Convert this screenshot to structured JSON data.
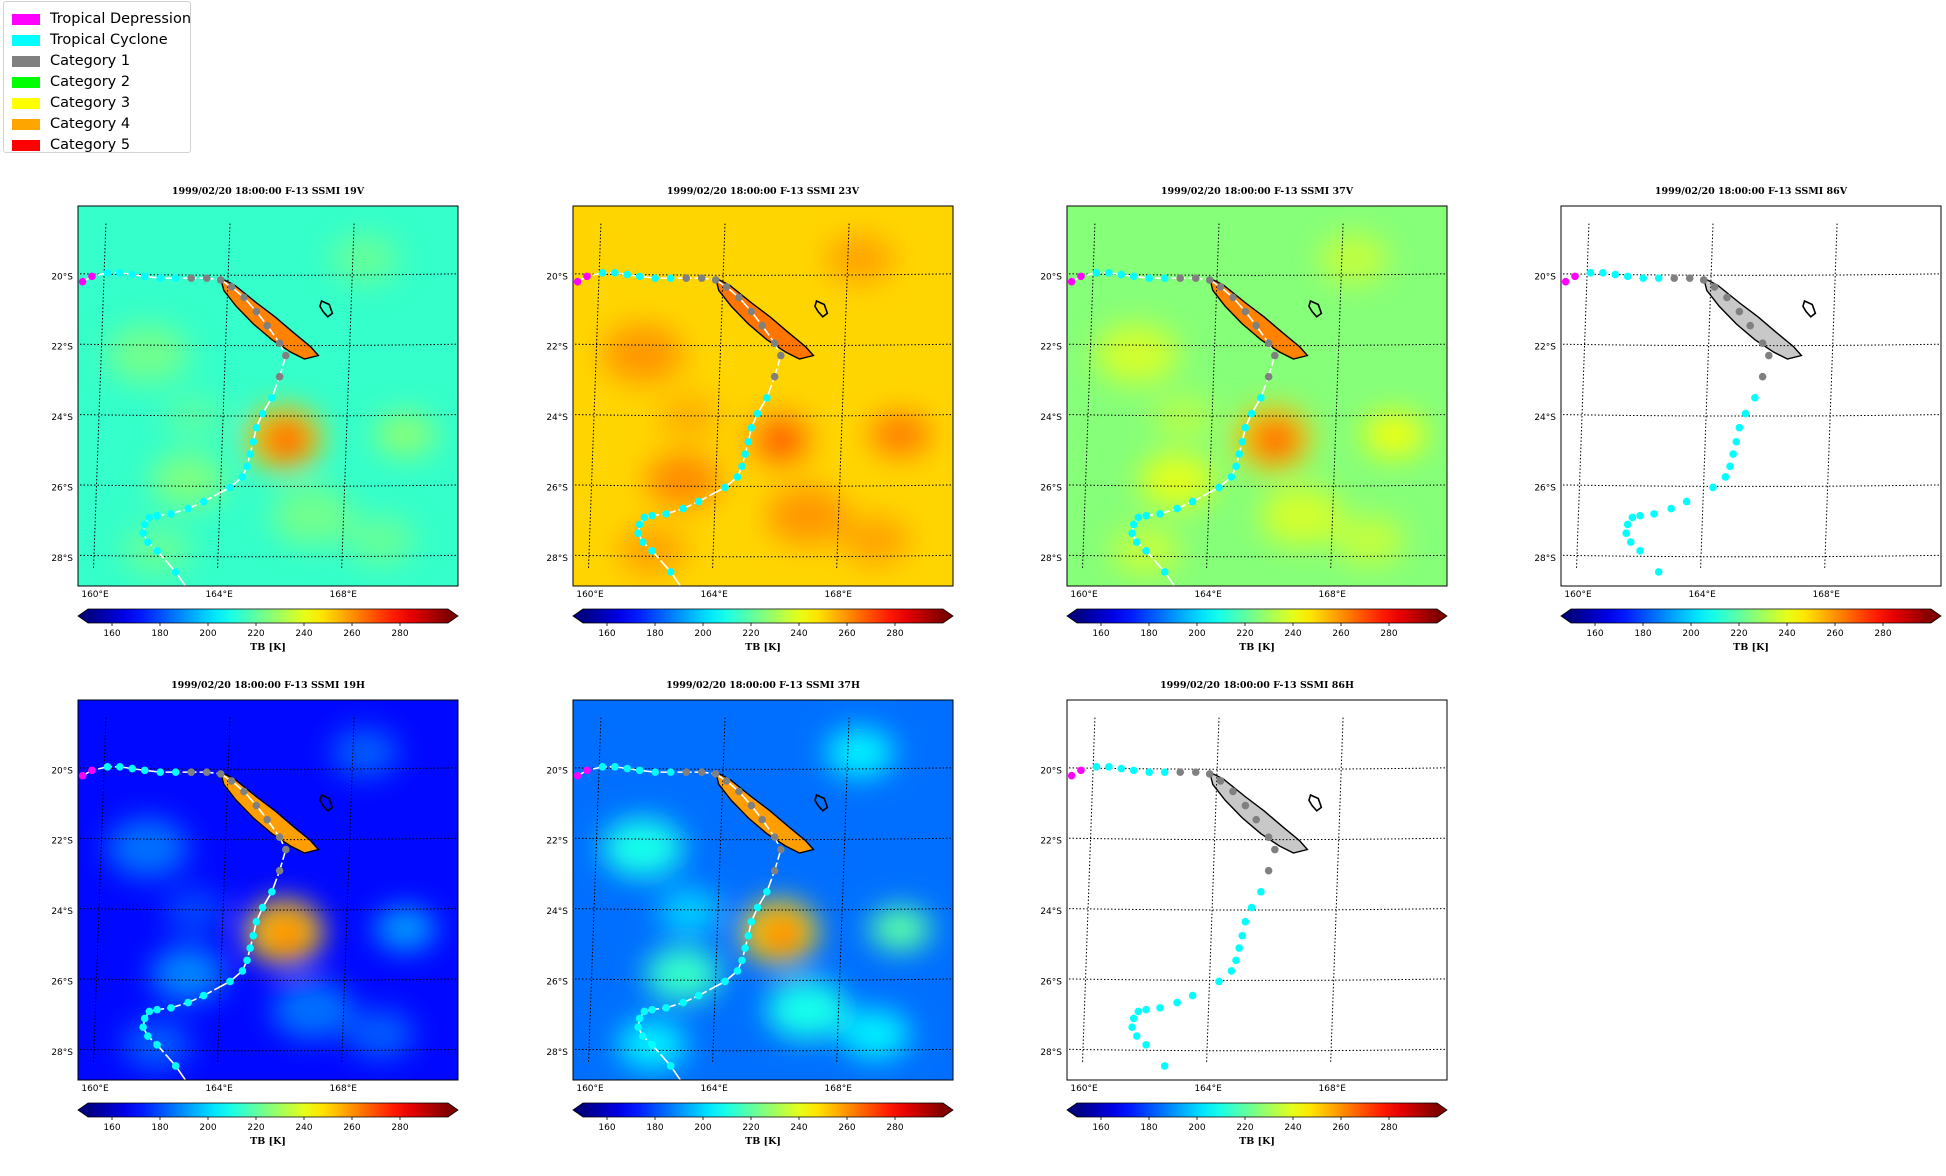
{
  "legend": {
    "items": [
      {
        "label": "Tropical Depression",
        "color": "#ff00ff"
      },
      {
        "label": "Tropical Cyclone",
        "color": "#00ffff"
      },
      {
        "label": "Category 1",
        "color": "#808080"
      },
      {
        "label": "Category 2",
        "color": "#00ff00"
      },
      {
        "label": "Category 3",
        "color": "#ffff00"
      },
      {
        "label": "Category 4",
        "color": "#ffa500"
      },
      {
        "label": "Category 5",
        "color": "#ff0000"
      }
    ]
  },
  "lon_labels": [
    "160°E",
    "164°E",
    "168°E"
  ],
  "lat_labels": [
    "20°S",
    "22°S",
    "24°S",
    "26°S",
    "28°S"
  ],
  "colorbar": {
    "label": "TB [K]",
    "ticks": [
      "160",
      "180",
      "200",
      "220",
      "240",
      "260",
      "280"
    ],
    "vmin": 150,
    "vmax": 300,
    "colormap": "jet"
  },
  "track": {
    "points": [
      {
        "lat": -20.15,
        "lon": 159.4,
        "cat": "Tropical Depression"
      },
      {
        "lat": -20.0,
        "lon": 159.7,
        "cat": "Tropical Depression"
      },
      {
        "lat": -19.9,
        "lon": 160.2,
        "cat": "Tropical Cyclone"
      },
      {
        "lat": -19.9,
        "lon": 160.6,
        "cat": "Tropical Cyclone"
      },
      {
        "lat": -19.95,
        "lon": 161.0,
        "cat": "Tropical Cyclone"
      },
      {
        "lat": -20.0,
        "lon": 161.4,
        "cat": "Tropical Cyclone"
      },
      {
        "lat": -20.05,
        "lon": 161.9,
        "cat": "Tropical Cyclone"
      },
      {
        "lat": -20.05,
        "lon": 162.4,
        "cat": "Tropical Cyclone"
      },
      {
        "lat": -20.05,
        "lon": 162.9,
        "cat": "Category 1"
      },
      {
        "lat": -20.05,
        "lon": 163.4,
        "cat": "Category 1"
      },
      {
        "lat": -20.1,
        "lon": 163.85,
        "cat": "Category 1"
      },
      {
        "lat": -20.3,
        "lon": 164.2,
        "cat": "Category 1"
      },
      {
        "lat": -20.6,
        "lon": 164.6,
        "cat": "Category 1"
      },
      {
        "lat": -21.0,
        "lon": 165.0,
        "cat": "Category 1"
      },
      {
        "lat": -21.4,
        "lon": 165.35,
        "cat": "Category 1"
      },
      {
        "lat": -21.9,
        "lon": 165.75,
        "cat": "Category 1"
      },
      {
        "lat": -22.25,
        "lon": 165.95,
        "cat": "Category 1"
      },
      {
        "lat": -22.85,
        "lon": 165.75,
        "cat": "Category 1"
      },
      {
        "lat": -23.45,
        "lon": 165.5,
        "cat": "Tropical Cyclone"
      },
      {
        "lat": -23.9,
        "lon": 165.2,
        "cat": "Tropical Cyclone"
      },
      {
        "lat": -24.3,
        "lon": 165.0,
        "cat": "Tropical Cyclone"
      },
      {
        "lat": -24.7,
        "lon": 164.9,
        "cat": "Tropical Cyclone"
      },
      {
        "lat": -25.05,
        "lon": 164.8,
        "cat": "Tropical Cyclone"
      },
      {
        "lat": -25.4,
        "lon": 164.7,
        "cat": "Tropical Cyclone"
      },
      {
        "lat": -25.7,
        "lon": 164.55,
        "cat": "Tropical Cyclone"
      },
      {
        "lat": -26.0,
        "lon": 164.15,
        "cat": "Tropical Cyclone"
      },
      {
        "lat": -26.4,
        "lon": 163.3,
        "cat": "Tropical Cyclone"
      },
      {
        "lat": -26.6,
        "lon": 162.8,
        "cat": "Tropical Cyclone"
      },
      {
        "lat": -26.75,
        "lon": 162.25,
        "cat": "Tropical Cyclone"
      },
      {
        "lat": -26.8,
        "lon": 161.8,
        "cat": "Tropical Cyclone"
      },
      {
        "lat": -26.85,
        "lon": 161.55,
        "cat": "Tropical Cyclone"
      },
      {
        "lat": -27.05,
        "lon": 161.4,
        "cat": "Tropical Cyclone"
      },
      {
        "lat": -27.3,
        "lon": 161.35,
        "cat": "Tropical Cyclone"
      },
      {
        "lat": -27.55,
        "lon": 161.5,
        "cat": "Tropical Cyclone"
      },
      {
        "lat": -27.8,
        "lon": 161.8,
        "cat": "Tropical Cyclone"
      },
      {
        "lat": -28.4,
        "lon": 162.4,
        "cat": "Tropical Cyclone"
      }
    ]
  },
  "panels": [
    {
      "title": "1999/02/20 18:00:00  F-13 SSMI 19V",
      "background": 214,
      "storm": 266,
      "spread": 8,
      "track_line": true
    },
    {
      "title": "1999/02/20 18:00:00  F-13 SSMI 23V",
      "background": 250,
      "storm": 268,
      "spread": 8,
      "track_line": true
    },
    {
      "title": "1999/02/20 18:00:00  F-13 SSMI 37V",
      "background": 226,
      "storm": 266,
      "spread": 10,
      "track_line": true
    },
    {
      "title": "1999/02/20 18:00:00  F-13 SSMI 86V",
      "background": null,
      "storm": null,
      "spread": 0,
      "track_line": false
    },
    {
      "title": "1999/02/20 18:00:00  F-13 SSMI 19H",
      "background": 170,
      "storm": 262,
      "spread": 14,
      "track_line": true
    },
    {
      "title": "1999/02/20 18:00:00  F-13 SSMI 37H",
      "background": 185,
      "storm": 262,
      "spread": 22,
      "track_line": true
    },
    {
      "title": "1999/02/20 18:00:00  F-13 SSMI 86H",
      "background": null,
      "storm": null,
      "spread": 0,
      "track_line": false
    }
  ]
}
